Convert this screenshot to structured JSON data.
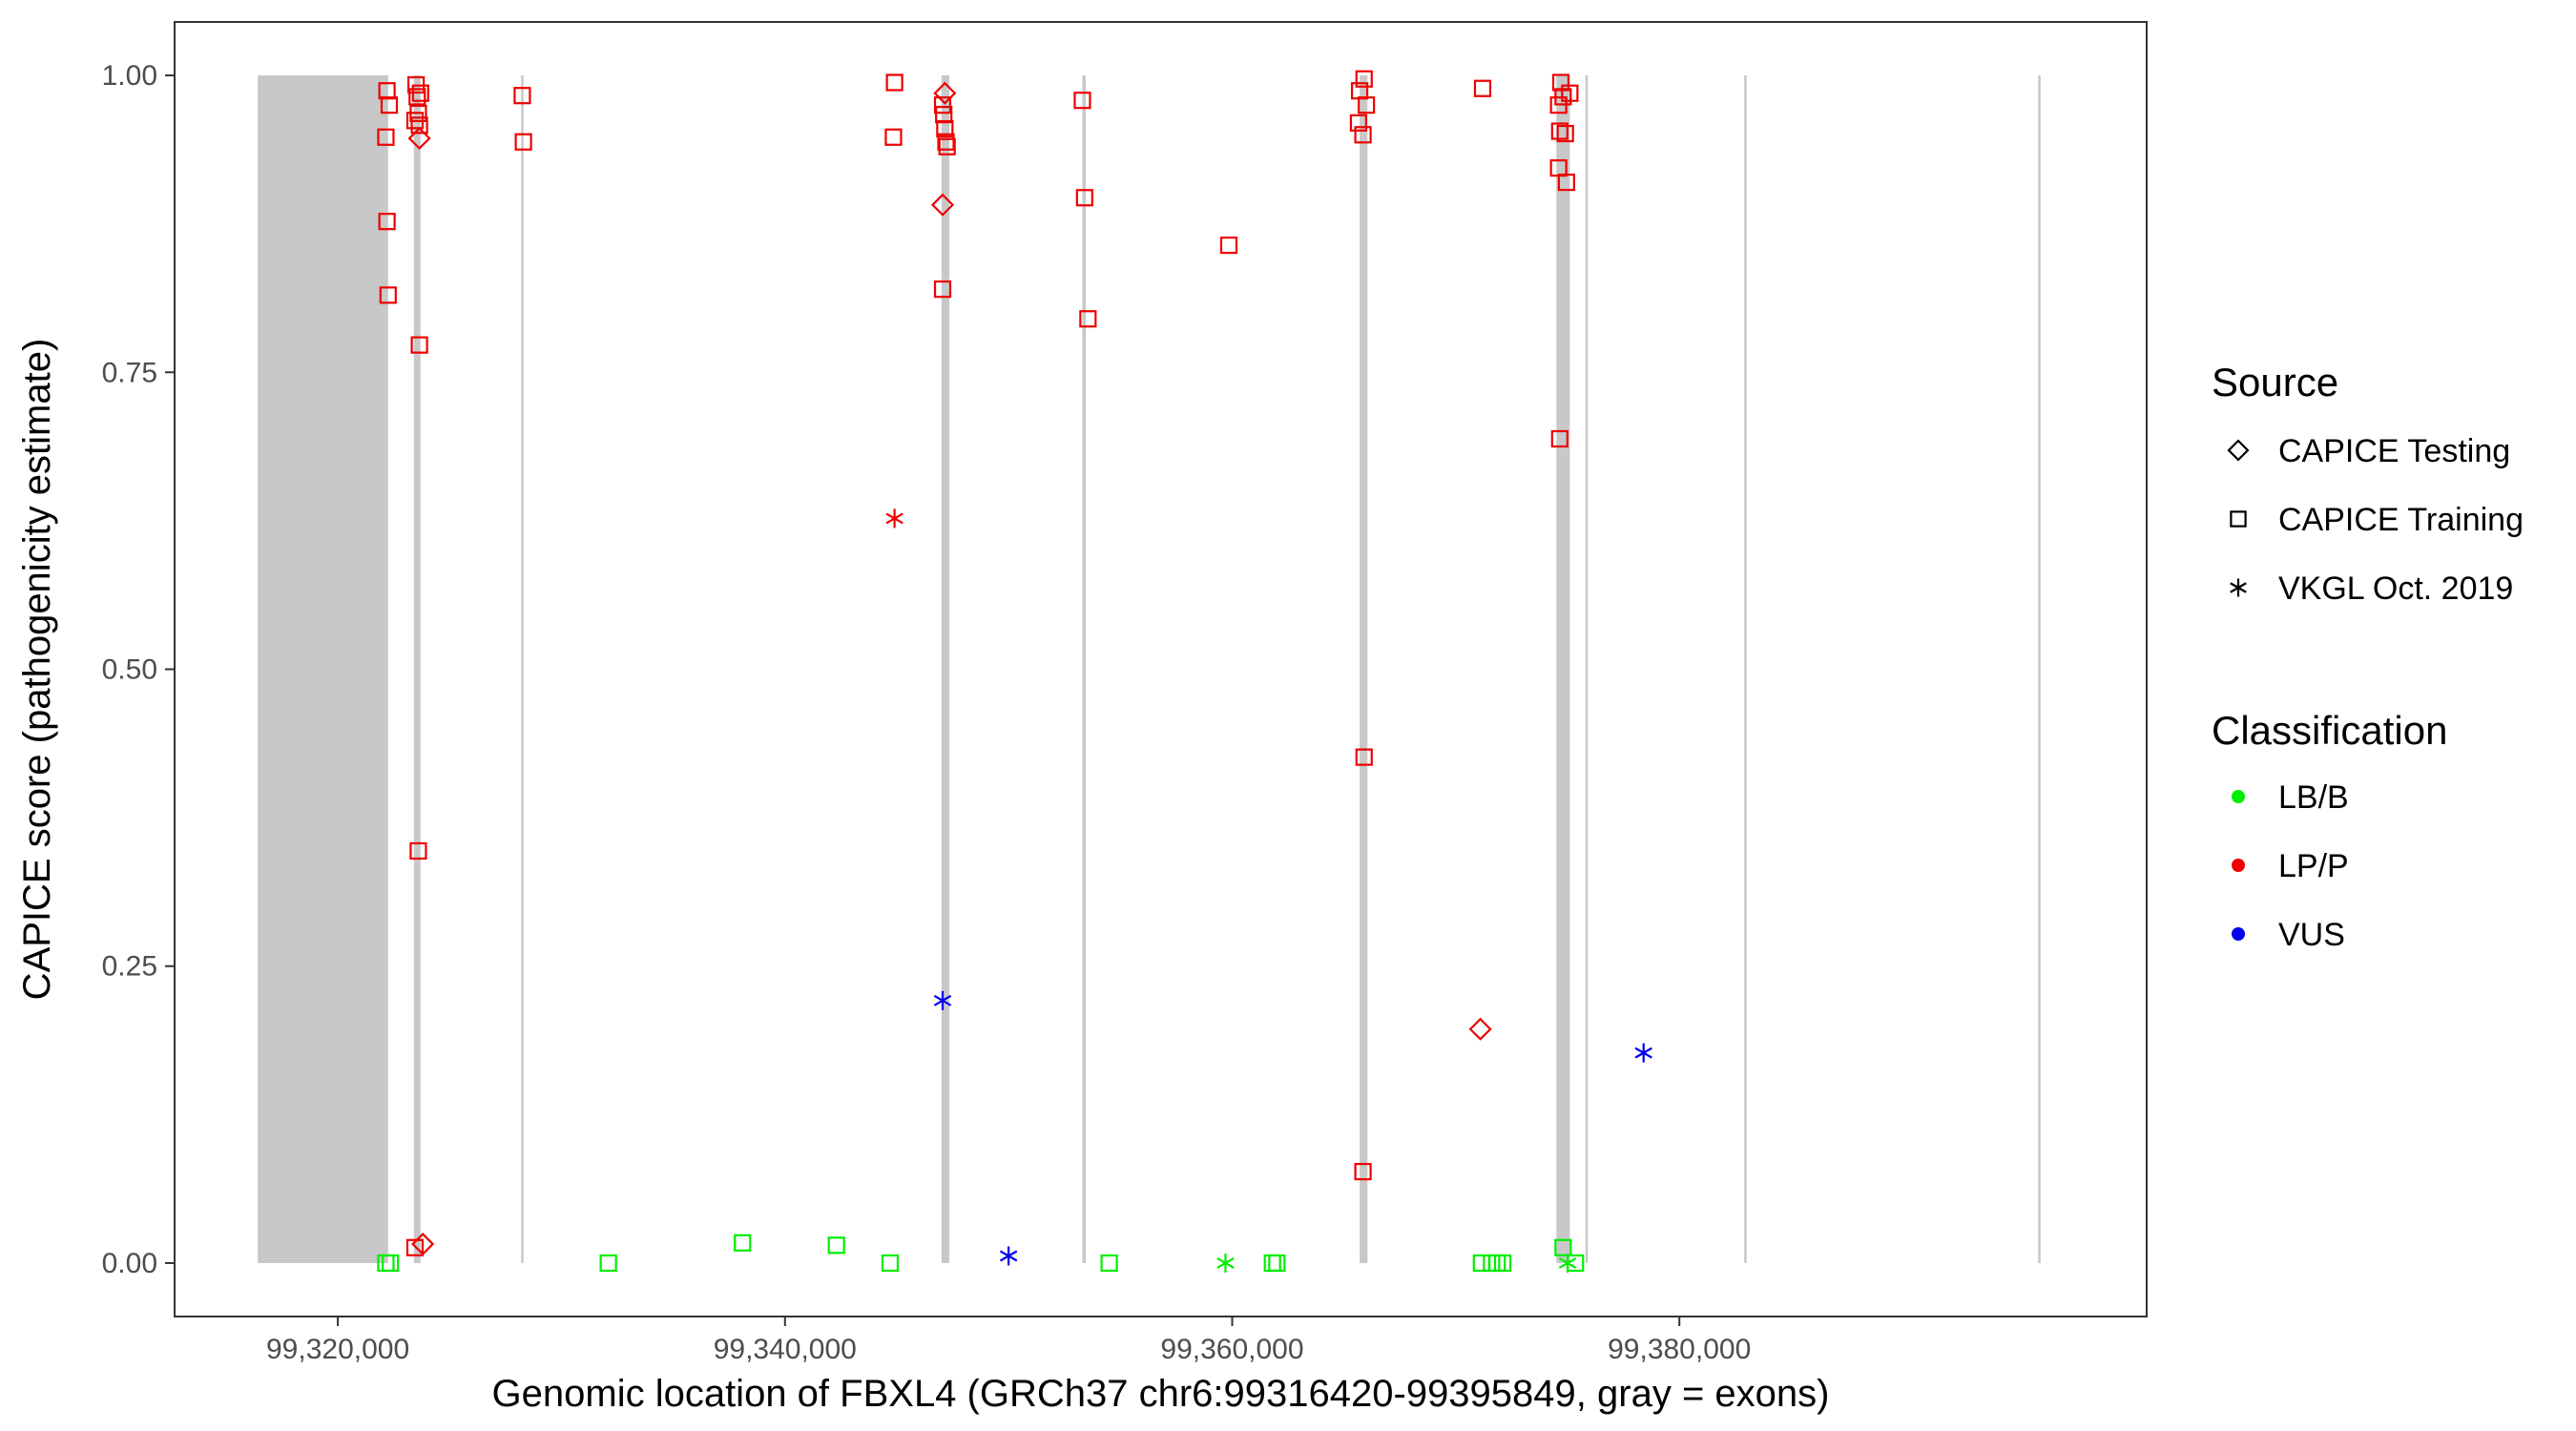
{
  "chart_data": {
    "type": "scatter",
    "title": "",
    "xlabel": "Genomic location of FBXL4 (GRCh37 chr6:99316420-99395849, gray = exons)",
    "ylabel": "CAPICE score (pathogenicity estimate)",
    "xlim": [
      99312700,
      99400900
    ],
    "ylim": [
      -0.045,
      1.045
    ],
    "x_ticks": [
      {
        "value": 99320000,
        "label": "99,320,000"
      },
      {
        "value": 99340000,
        "label": "99,340,000"
      },
      {
        "value": 99360000,
        "label": "99,360,000"
      },
      {
        "value": 99380000,
        "label": "99,380,000"
      }
    ],
    "y_ticks": [
      {
        "value": 0,
        "label": "0.00"
      },
      {
        "value": 0.25,
        "label": "0.25"
      },
      {
        "value": 0.5,
        "label": "0.50"
      },
      {
        "value": 0.75,
        "label": "0.75"
      },
      {
        "value": 1,
        "label": "1.00"
      }
    ],
    "grid": false,
    "exons": [
      [
        99316420,
        99322250
      ],
      [
        99323400,
        99323700
      ],
      [
        99328200,
        99328300
      ],
      [
        99347000,
        99347350
      ],
      [
        99353300,
        99353450
      ],
      [
        99365700,
        99366050
      ],
      [
        99374500,
        99375100
      ],
      [
        99375800,
        99375900
      ],
      [
        99382900,
        99383000
      ],
      [
        99396050,
        99396150
      ]
    ],
    "legend": {
      "position": "right",
      "source": {
        "title": "Source",
        "items": [
          {
            "label": "CAPICE Testing",
            "shape": "diamond"
          },
          {
            "label": "CAPICE Training",
            "shape": "square"
          },
          {
            "label": "VKGL Oct. 2019",
            "shape": "asterisk"
          }
        ]
      },
      "classification": {
        "title": "Classification",
        "items": [
          {
            "label": "LB/B",
            "color": "#00ee00"
          },
          {
            "label": "LP/P",
            "color": "#ee0000"
          },
          {
            "label": "VUS",
            "color": "#0000ee"
          }
        ]
      }
    },
    "colors": {
      "LB/B": "#00ee00",
      "LP/P": "#ee0000",
      "VUS": "#0000ee",
      "exon": "#c8c8c8"
    },
    "series": [
      {
        "name": "CAPICE Training",
        "shape": "square",
        "class": "LP/P",
        "points": [
          [
            99322200,
            0.987
          ],
          [
            99322300,
            0.975
          ],
          [
            99322150,
            0.948
          ],
          [
            99322200,
            0.877
          ],
          [
            99322250,
            0.815
          ],
          [
            99323500,
            0.992
          ],
          [
            99323550,
            0.982
          ],
          [
            99323600,
            0.968
          ],
          [
            99323450,
            0.962
          ],
          [
            99323650,
            0.958
          ],
          [
            99323700,
            0.985
          ],
          [
            99323650,
            0.773
          ],
          [
            99323600,
            0.347
          ],
          [
            99323450,
            0.013
          ],
          [
            99328250,
            0.983
          ],
          [
            99328300,
            0.944
          ],
          [
            99344900,
            0.994
          ],
          [
            99344850,
            0.948
          ],
          [
            99347050,
            0.975
          ],
          [
            99347100,
            0.967
          ],
          [
            99347150,
            0.955
          ],
          [
            99347200,
            0.944
          ],
          [
            99347250,
            0.94
          ],
          [
            99347050,
            0.82
          ],
          [
            99353300,
            0.979
          ],
          [
            99353400,
            0.897
          ],
          [
            99353550,
            0.795
          ],
          [
            99359850,
            0.857
          ],
          [
            99365700,
            0.987
          ],
          [
            99365900,
            0.997
          ],
          [
            99366000,
            0.975
          ],
          [
            99365650,
            0.96
          ],
          [
            99365850,
            0.95
          ],
          [
            99365900,
            0.426
          ],
          [
            99365850,
            0.077
          ],
          [
            99371200,
            0.989
          ],
          [
            99374700,
            0.994
          ],
          [
            99374800,
            0.982
          ],
          [
            99375100,
            0.985
          ],
          [
            99374600,
            0.975
          ],
          [
            99374650,
            0.953
          ],
          [
            99374900,
            0.951
          ],
          [
            99374600,
            0.922
          ],
          [
            99374950,
            0.91
          ],
          [
            99374650,
            0.694
          ]
        ]
      },
      {
        "name": "CAPICE Testing",
        "shape": "diamond",
        "class": "LP/P",
        "points": [
          [
            99347150,
            0.985
          ],
          [
            99347050,
            0.891
          ],
          [
            99323650,
            0.947
          ],
          [
            99323800,
            0.016
          ],
          [
            99371100,
            0.197
          ]
        ]
      },
      {
        "name": "VKGL Oct. 2019",
        "shape": "asterisk",
        "class": "LP/P",
        "points": [
          [
            99344900,
            0.627
          ]
        ]
      },
      {
        "name": "VKGL Oct. 2019",
        "shape": "asterisk",
        "class": "VUS",
        "points": [
          [
            99347050,
            0.221
          ],
          [
            99350000,
            0.006
          ],
          [
            99378400,
            0.177
          ]
        ]
      },
      {
        "name": "CAPICE Training",
        "shape": "square",
        "class": "LB/B",
        "points": [
          [
            99322150,
            0.0
          ],
          [
            99322350,
            0.0
          ],
          [
            99332100,
            0.0
          ],
          [
            99338100,
            0.017
          ],
          [
            99342300,
            0.015
          ],
          [
            99344700,
            0.0
          ],
          [
            99354500,
            0.0
          ],
          [
            99361800,
            0.0
          ],
          [
            99362000,
            0.0
          ],
          [
            99371150,
            0.0
          ],
          [
            99371600,
            0.0
          ],
          [
            99371850,
            0.0
          ],
          [
            99372100,
            0.0
          ],
          [
            99374800,
            0.013
          ],
          [
            99375350,
            0.0
          ]
        ]
      },
      {
        "name": "VKGL Oct. 2019",
        "shape": "asterisk",
        "class": "LB/B",
        "points": [
          [
            99359700,
            0.0
          ],
          [
            99375000,
            0.0
          ]
        ]
      }
    ]
  }
}
